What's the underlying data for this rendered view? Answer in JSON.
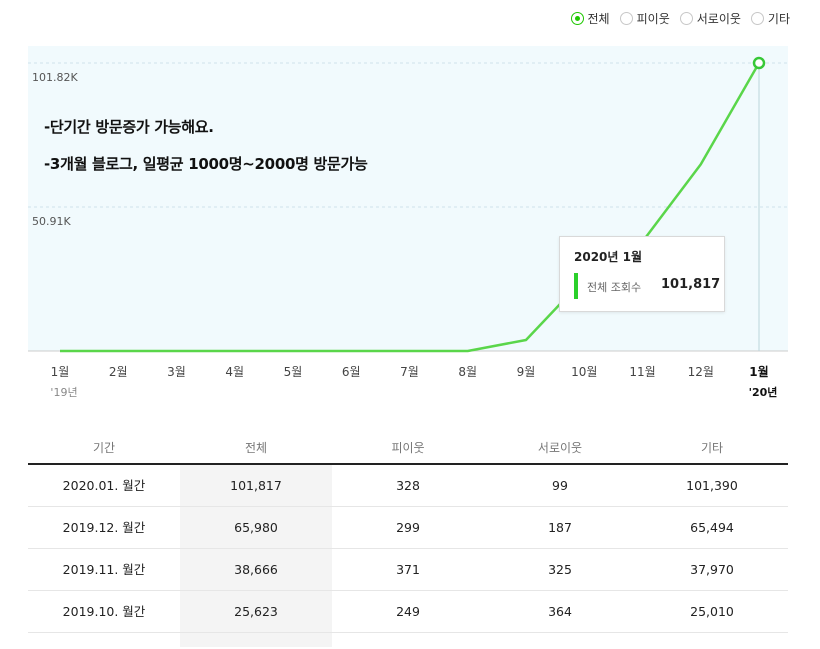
{
  "legend": {
    "items": [
      {
        "label": "전체",
        "selected": true
      },
      {
        "label": "피이웃",
        "selected": false
      },
      {
        "label": "서로이웃",
        "selected": false
      },
      {
        "label": "기타",
        "selected": false
      }
    ],
    "accent": "#1ec800"
  },
  "annotations": {
    "line1": "-단기간 방문증가 가능해요.",
    "line2": "-3개월 블로그, 일평균 1000명~2000명 방문가능"
  },
  "tooltip": {
    "title": "2020년 1월",
    "label": "전체 조회수",
    "value": "101,817"
  },
  "chart_data": {
    "type": "line",
    "categories": [
      "1월",
      "2월",
      "3월",
      "4월",
      "5월",
      "6월",
      "7월",
      "8월",
      "9월",
      "10월",
      "11월",
      "12월",
      "1월"
    ],
    "year_labels": [
      "'19년",
      "",
      "",
      "",
      "",
      "",
      "",
      "",
      "",
      "",
      "",
      "",
      "'20년"
    ],
    "series": [
      {
        "values": [
          0,
          0,
          0,
          0,
          0,
          0,
          0,
          0,
          3900,
          25623,
          38666,
          65980,
          101817
        ],
        "color": "#5ad64a"
      }
    ],
    "y_ticks": [
      {
        "value": 50910,
        "label": "50.91K"
      },
      {
        "value": 101820,
        "label": "101.82K"
      }
    ],
    "ylim": [
      0,
      101820
    ],
    "grid": true,
    "highlight_index": 12
  },
  "table": {
    "headers": [
      "기간",
      "전체",
      "피이웃",
      "서로이웃",
      "기타"
    ],
    "rows": [
      [
        "2020.01. 월간",
        "101,817",
        "328",
        "99",
        "101,390"
      ],
      [
        "2019.12. 월간",
        "65,980",
        "299",
        "187",
        "65,494"
      ],
      [
        "2019.11. 월간",
        "38,666",
        "371",
        "325",
        "37,970"
      ],
      [
        "2019.10. 월간",
        "25,623",
        "249",
        "364",
        "25,010"
      ]
    ]
  }
}
